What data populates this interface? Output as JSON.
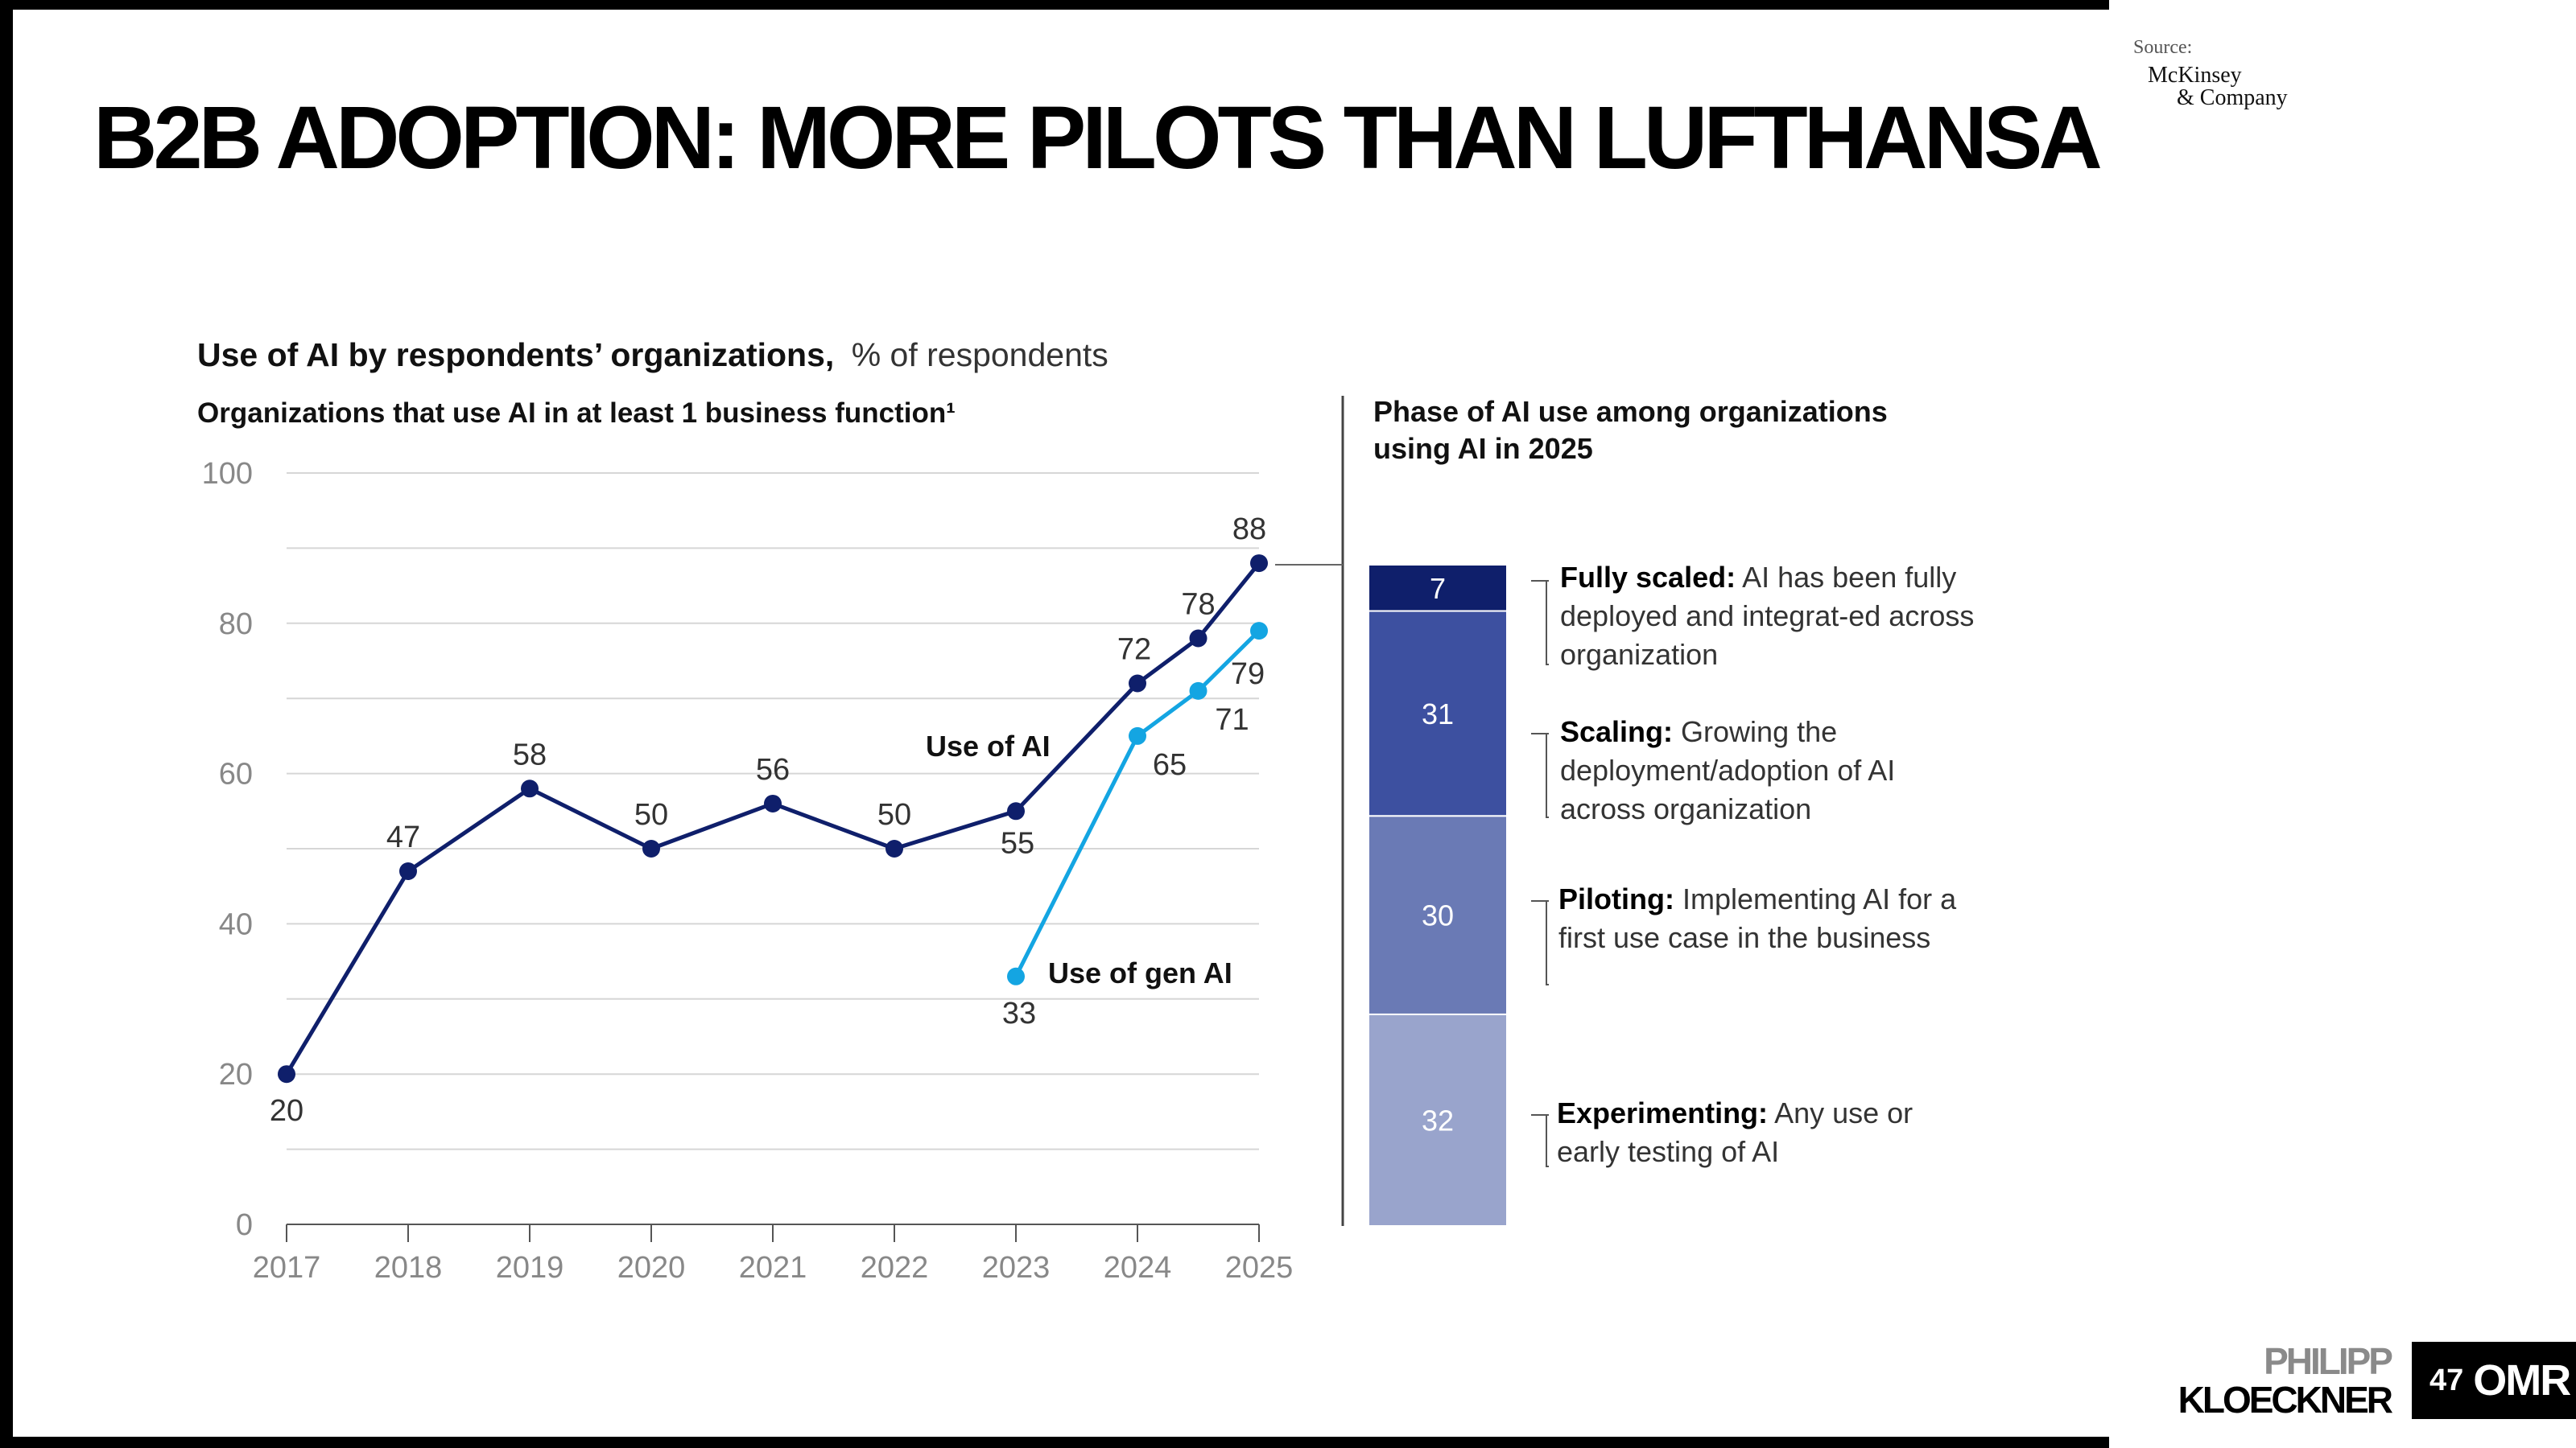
{
  "slide": {
    "title": "B2B ADOPTION: MORE PILOTS THAN LUFTHANSA",
    "source_label": "Source:",
    "source_logo_line1": "McKinsey",
    "source_logo_line2": "& Company",
    "brand_first": "PHILIPP",
    "brand_last": "KLOECKNER",
    "page_number": "47",
    "badge_logo": "OMR"
  },
  "chart_data": [
    {
      "type": "line",
      "title": "Use of AI by respondents’ organizations,",
      "title_suffix": "% of respondents",
      "subtitle": "Organizations that use AI in at least 1 business function¹",
      "x_ticks": [
        "2017",
        "2018",
        "2019",
        "2020",
        "2021",
        "2022",
        "2023",
        "2024",
        "2025"
      ],
      "y_ticks": [
        "0",
        "20",
        "40",
        "60",
        "80",
        "100"
      ],
      "ylim": [
        0,
        100
      ],
      "xlim": [
        2017,
        2025
      ],
      "grid": true,
      "series": [
        {
          "name": "Use of AI",
          "color": "#0f1f6b",
          "x": [
            2017,
            2018,
            2019,
            2020,
            2021,
            2022,
            2023,
            2024,
            2024.5,
            2025
          ],
          "values": [
            20,
            47,
            58,
            50,
            56,
            50,
            55,
            72,
            78,
            88
          ],
          "labels": [
            "20",
            "47",
            "58",
            "50",
            "56",
            "50",
            "55",
            "72",
            "78",
            "88"
          ]
        },
        {
          "name": "Use of gen AI",
          "color": "#14a5e2",
          "x": [
            2023,
            2024,
            2024.5,
            2025
          ],
          "values": [
            33,
            65,
            71,
            79
          ],
          "labels": [
            "33",
            "65",
            "71",
            "79"
          ]
        }
      ]
    },
    {
      "type": "bar",
      "stacked": true,
      "title": "Phase of AI use among organizations using AI in 2025",
      "title_line1": "Phase of AI use among organizations",
      "title_line2": "using AI in 2025",
      "segments": [
        {
          "value": 7,
          "label": "7",
          "name": "Fully scaled:",
          "description": "AI has been fully deployed and integrat-ed across organization",
          "color": "#0f1f6b"
        },
        {
          "value": 31,
          "label": "31",
          "name": "Scaling:",
          "description": "Growing the deployment/adoption of AI across organization",
          "color": "#3d50a0"
        },
        {
          "value": 30,
          "label": "30",
          "name": "Piloting:",
          "description": "Implementing AI for a first use case in the business",
          "color": "#6a7ab5"
        },
        {
          "value": 32,
          "label": "32",
          "name": "Experimenting:",
          "description": "Any use or early testing of AI",
          "color": "#99a4cc"
        }
      ]
    }
  ]
}
